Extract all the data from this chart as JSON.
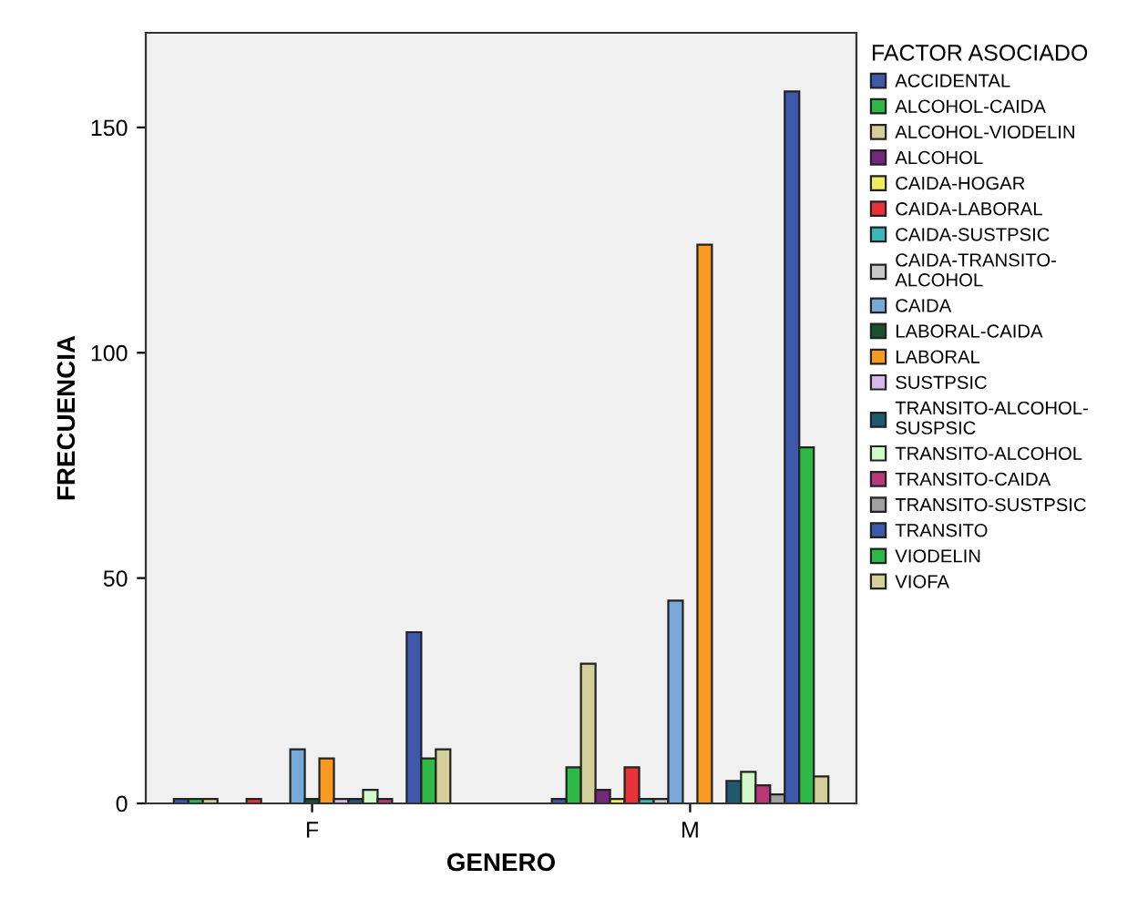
{
  "chart_data": {
    "type": "bar",
    "xlabel": "GENERO",
    "ylabel": "FRECUENCIA",
    "legend_title": "FACTOR ASOCIADO",
    "legend": "right",
    "grid": false,
    "categories": [
      "F",
      "M"
    ],
    "ylim": [
      0,
      171
    ],
    "yticks": [
      0,
      50,
      100,
      150
    ],
    "series": [
      {
        "name": "ACCIDENTAL",
        "color": "#3e58ac",
        "values": [
          1,
          1
        ]
      },
      {
        "name": "ALCOHOL-CAIDA",
        "color": "#2eb848",
        "values": [
          1,
          8
        ]
      },
      {
        "name": "ALCOHOL-VIODELIN",
        "color": "#d4cf9a",
        "values": [
          1,
          31
        ]
      },
      {
        "name": "ALCOHOL",
        "color": "#73287e",
        "values": [
          null,
          3
        ]
      },
      {
        "name": "CAIDA-HOGAR",
        "color": "#f0ec60",
        "values": [
          null,
          1
        ]
      },
      {
        "name": "CAIDA-LABORAL",
        "color": "#e8323a",
        "values": [
          1,
          8
        ]
      },
      {
        "name": "CAIDA-SUSTPSIC",
        "color": "#3ab8b8",
        "values": [
          null,
          1
        ]
      },
      {
        "name": "CAIDA-TRANSITO-ALCOHOL",
        "color": "#c8c8c8",
        "values": [
          null,
          1
        ]
      },
      {
        "name": "CAIDA",
        "color": "#78a8d8",
        "values": [
          12,
          45
        ]
      },
      {
        "name": "LABORAL-CAIDA",
        "color": "#1a5030",
        "values": [
          1,
          null
        ]
      },
      {
        "name": "LABORAL",
        "color": "#f89a20",
        "values": [
          10,
          124
        ]
      },
      {
        "name": "SUSTPSIC",
        "color": "#d8b8e8",
        "values": [
          1,
          null
        ]
      },
      {
        "name": "TRANSITO-ALCOHOL-SUSPSIC",
        "color": "#1e5a70",
        "values": [
          1,
          5
        ]
      },
      {
        "name": "TRANSITO-ALCOHOL",
        "color": "#d0f8c8",
        "values": [
          3,
          7
        ]
      },
      {
        "name": "TRANSITO-CAIDA",
        "color": "#b83878",
        "values": [
          1,
          4
        ]
      },
      {
        "name": "TRANSITO-SUSTPSIC",
        "color": "#a0a0a0",
        "values": [
          null,
          2
        ]
      },
      {
        "name": "TRANSITO",
        "color": "#3e58ac",
        "values": [
          38,
          158
        ]
      },
      {
        "name": "VIODELIN",
        "color": "#2eb848",
        "values": [
          10,
          79
        ]
      },
      {
        "name": "VIOFA",
        "color": "#d4cf9a",
        "values": [
          12,
          6
        ]
      }
    ]
  }
}
